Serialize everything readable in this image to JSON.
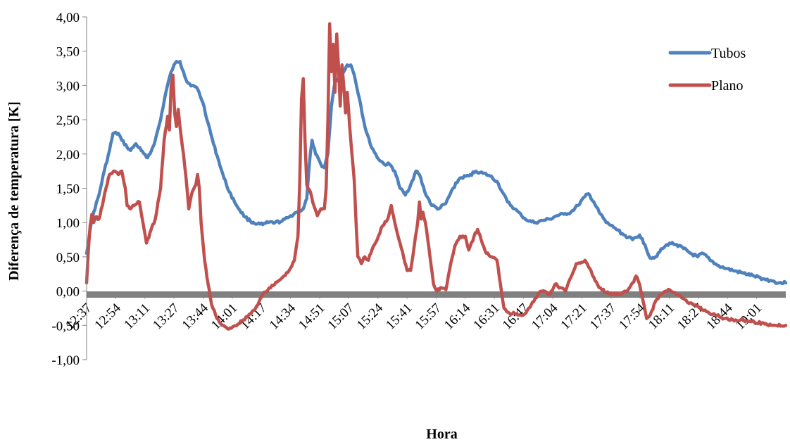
{
  "chart_data": {
    "type": "line",
    "title": "",
    "xlabel": "Hora",
    "ylabel": "Diferença de temperatura [K]",
    "ylim": [
      -1.0,
      4.0
    ],
    "ytick_labels": [
      "-1,00",
      "-0,50",
      "0,00",
      "0,50",
      "1,00",
      "1,50",
      "2,00",
      "2,50",
      "3,00",
      "3,50",
      "4,00"
    ],
    "xtick_labels": [
      "12:37",
      "12:54",
      "13:11",
      "13:27",
      "13:44",
      "14:01",
      "14:17",
      "14:34",
      "14:51",
      "15:07",
      "15:24",
      "15:41",
      "15:57",
      "16:14",
      "16:31",
      "16:47",
      "17:04",
      "17:21",
      "17:37",
      "17:54",
      "18:11",
      "18:27",
      "18:44",
      "19:01"
    ],
    "x_range": [
      "12:37",
      "19:14"
    ],
    "grid": false,
    "legend_position": "top-right",
    "reference_line": {
      "y": -0.05,
      "color": "#808080"
    },
    "series": [
      {
        "name": "Tubos",
        "color": "#4F81BD",
        "points": [
          [
            "12:37",
            0.55
          ],
          [
            "12:39",
            0.9
          ],
          [
            "12:41",
            1.15
          ],
          [
            "12:44",
            1.4
          ],
          [
            "12:47",
            1.75
          ],
          [
            "12:50",
            2.05
          ],
          [
            "12:52",
            2.3
          ],
          [
            "12:55",
            2.3
          ],
          [
            "12:57",
            2.2
          ],
          [
            "13:00",
            2.1
          ],
          [
            "13:02",
            2.05
          ],
          [
            "13:05",
            2.15
          ],
          [
            "13:08",
            2.05
          ],
          [
            "13:11",
            1.95
          ],
          [
            "13:13",
            2.0
          ],
          [
            "13:16",
            2.2
          ],
          [
            "13:19",
            2.5
          ],
          [
            "13:22",
            2.9
          ],
          [
            "13:25",
            3.2
          ],
          [
            "13:28",
            3.35
          ],
          [
            "13:30",
            3.35
          ],
          [
            "13:32",
            3.2
          ],
          [
            "13:34",
            3.05
          ],
          [
            "13:37",
            3.0
          ],
          [
            "13:40",
            2.95
          ],
          [
            "13:43",
            2.75
          ],
          [
            "13:46",
            2.45
          ],
          [
            "13:49",
            2.15
          ],
          [
            "13:52",
            1.9
          ],
          [
            "13:55",
            1.65
          ],
          [
            "13:58",
            1.45
          ],
          [
            "14:01",
            1.3
          ],
          [
            "14:04",
            1.18
          ],
          [
            "14:07",
            1.08
          ],
          [
            "14:10",
            1.02
          ],
          [
            "14:14",
            0.98
          ],
          [
            "14:17",
            0.97
          ],
          [
            "14:20",
            1.0
          ],
          [
            "14:24",
            1.0
          ],
          [
            "14:28",
            1.02
          ],
          [
            "14:32",
            1.08
          ],
          [
            "14:36",
            1.15
          ],
          [
            "14:40",
            1.2
          ],
          [
            "14:42",
            1.35
          ],
          [
            "14:44",
            2.0
          ],
          [
            "14:45",
            2.2
          ],
          [
            "14:47",
            2.0
          ],
          [
            "14:50",
            1.85
          ],
          [
            "14:52",
            1.8
          ],
          [
            "14:54",
            2.0
          ],
          [
            "14:56",
            2.7
          ],
          [
            "14:58",
            3.05
          ],
          [
            "15:00",
            3.1
          ],
          [
            "15:03",
            3.2
          ],
          [
            "15:05",
            3.3
          ],
          [
            "15:07",
            3.3
          ],
          [
            "15:09",
            3.15
          ],
          [
            "15:12",
            2.8
          ],
          [
            "15:15",
            2.4
          ],
          [
            "15:18",
            2.15
          ],
          [
            "15:22",
            1.95
          ],
          [
            "15:26",
            1.85
          ],
          [
            "15:29",
            1.85
          ],
          [
            "15:32",
            1.75
          ],
          [
            "15:35",
            1.5
          ],
          [
            "15:38",
            1.4
          ],
          [
            "15:41",
            1.55
          ],
          [
            "15:44",
            1.75
          ],
          [
            "15:46",
            1.7
          ],
          [
            "15:49",
            1.45
          ],
          [
            "15:53",
            1.25
          ],
          [
            "15:57",
            1.2
          ],
          [
            "16:01",
            1.28
          ],
          [
            "16:05",
            1.5
          ],
          [
            "16:09",
            1.65
          ],
          [
            "16:14",
            1.68
          ],
          [
            "16:18",
            1.75
          ],
          [
            "16:22",
            1.72
          ],
          [
            "16:26",
            1.68
          ],
          [
            "16:30",
            1.6
          ],
          [
            "16:33",
            1.45
          ],
          [
            "16:36",
            1.3
          ],
          [
            "16:40",
            1.2
          ],
          [
            "16:44",
            1.1
          ],
          [
            "16:48",
            1.02
          ],
          [
            "16:52",
            1.0
          ],
          [
            "16:56",
            1.03
          ],
          [
            "17:00",
            1.05
          ],
          [
            "17:04",
            1.1
          ],
          [
            "17:08",
            1.12
          ],
          [
            "17:12",
            1.15
          ],
          [
            "17:16",
            1.25
          ],
          [
            "17:20",
            1.38
          ],
          [
            "17:22",
            1.42
          ],
          [
            "17:25",
            1.3
          ],
          [
            "17:28",
            1.15
          ],
          [
            "17:32",
            1.0
          ],
          [
            "17:37",
            0.92
          ],
          [
            "17:42",
            0.82
          ],
          [
            "17:47",
            0.75
          ],
          [
            "17:51",
            0.82
          ],
          [
            "17:54",
            0.68
          ],
          [
            "17:57",
            0.48
          ],
          [
            "18:00",
            0.5
          ],
          [
            "18:04",
            0.62
          ],
          [
            "18:08",
            0.7
          ],
          [
            "18:12",
            0.68
          ],
          [
            "18:16",
            0.62
          ],
          [
            "18:20",
            0.55
          ],
          [
            "18:24",
            0.5
          ],
          [
            "18:27",
            0.55
          ],
          [
            "18:31",
            0.45
          ],
          [
            "18:35",
            0.38
          ],
          [
            "18:40",
            0.33
          ],
          [
            "18:44",
            0.3
          ],
          [
            "18:50",
            0.26
          ],
          [
            "18:56",
            0.22
          ],
          [
            "19:01",
            0.18
          ],
          [
            "19:06",
            0.15
          ],
          [
            "19:10",
            0.12
          ],
          [
            "19:14",
            0.12
          ]
        ]
      },
      {
        "name": "Plano",
        "color": "#C0504D",
        "points": [
          [
            "12:37",
            0.12
          ],
          [
            "12:38",
            0.6
          ],
          [
            "12:39",
            0.95
          ],
          [
            "12:40",
            1.12
          ],
          [
            "12:41",
            1.0
          ],
          [
            "12:42",
            1.08
          ],
          [
            "12:44",
            1.05
          ],
          [
            "12:46",
            1.25
          ],
          [
            "12:48",
            1.5
          ],
          [
            "12:50",
            1.7
          ],
          [
            "12:53",
            1.75
          ],
          [
            "12:55",
            1.7
          ],
          [
            "12:57",
            1.75
          ],
          [
            "12:59",
            1.5
          ],
          [
            "13:00",
            1.25
          ],
          [
            "13:02",
            1.2
          ],
          [
            "13:04",
            1.25
          ],
          [
            "13:07",
            1.3
          ],
          [
            "13:09",
            1.0
          ],
          [
            "13:11",
            0.7
          ],
          [
            "13:13",
            0.85
          ],
          [
            "13:16",
            1.05
          ],
          [
            "13:19",
            1.5
          ],
          [
            "13:21",
            2.2
          ],
          [
            "13:23",
            2.55
          ],
          [
            "13:24",
            2.35
          ],
          [
            "13:25",
            3.0
          ],
          [
            "13:26",
            3.15
          ],
          [
            "13:27",
            2.6
          ],
          [
            "13:28",
            2.4
          ],
          [
            "13:29",
            2.65
          ],
          [
            "13:30",
            2.4
          ],
          [
            "13:32",
            2.0
          ],
          [
            "13:34",
            1.5
          ],
          [
            "13:35",
            1.2
          ],
          [
            "13:37",
            1.45
          ],
          [
            "13:39",
            1.55
          ],
          [
            "13:40",
            1.7
          ],
          [
            "13:41",
            1.5
          ],
          [
            "13:42",
            1.0
          ],
          [
            "13:44",
            0.45
          ],
          [
            "13:46",
            0.1
          ],
          [
            "13:48",
            -0.2
          ],
          [
            "13:51",
            -0.4
          ],
          [
            "13:54",
            -0.5
          ],
          [
            "13:57",
            -0.55
          ],
          [
            "14:00",
            -0.52
          ],
          [
            "14:03",
            -0.48
          ],
          [
            "14:06",
            -0.42
          ],
          [
            "14:09",
            -0.35
          ],
          [
            "14:12",
            -0.28
          ],
          [
            "14:15",
            -0.15
          ],
          [
            "14:17",
            -0.05
          ],
          [
            "14:20",
            0.02
          ],
          [
            "14:23",
            0.08
          ],
          [
            "14:26",
            0.15
          ],
          [
            "14:29",
            0.22
          ],
          [
            "14:32",
            0.3
          ],
          [
            "14:35",
            0.45
          ],
          [
            "14:37",
            0.8
          ],
          [
            "14:38",
            1.6
          ],
          [
            "14:39",
            2.8
          ],
          [
            "14:40",
            3.1
          ],
          [
            "14:41",
            2.2
          ],
          [
            "14:42",
            1.55
          ],
          [
            "14:44",
            1.45
          ],
          [
            "14:46",
            1.25
          ],
          [
            "14:48",
            1.1
          ],
          [
            "14:50",
            1.2
          ],
          [
            "14:52",
            1.2
          ],
          [
            "14:53",
            1.5
          ],
          [
            "14:54",
            2.5
          ],
          [
            "14:55",
            3.9
          ],
          [
            "14:56",
            3.2
          ],
          [
            "14:57",
            3.6
          ],
          [
            "14:58",
            2.9
          ],
          [
            "14:59",
            3.75
          ],
          [
            "15:00",
            3.3
          ],
          [
            "15:01",
            2.7
          ],
          [
            "15:02",
            3.3
          ],
          [
            "15:03",
            3.0
          ],
          [
            "15:04",
            2.6
          ],
          [
            "15:05",
            2.9
          ],
          [
            "15:07",
            2.2
          ],
          [
            "15:09",
            1.6
          ],
          [
            "15:10",
            1.0
          ],
          [
            "15:11",
            0.5
          ],
          [
            "15:13",
            0.4
          ],
          [
            "15:15",
            0.5
          ],
          [
            "15:17",
            0.45
          ],
          [
            "15:19",
            0.6
          ],
          [
            "15:22",
            0.75
          ],
          [
            "15:25",
            0.95
          ],
          [
            "15:28",
            1.05
          ],
          [
            "15:30",
            1.25
          ],
          [
            "15:32",
            1.0
          ],
          [
            "15:35",
            0.7
          ],
          [
            "15:37",
            0.5
          ],
          [
            "15:39",
            0.3
          ],
          [
            "15:41",
            0.3
          ],
          [
            "15:43",
            0.65
          ],
          [
            "15:45",
            1.0
          ],
          [
            "15:46",
            1.3
          ],
          [
            "15:47",
            1.05
          ],
          [
            "15:48",
            1.15
          ],
          [
            "15:50",
            0.9
          ],
          [
            "15:52",
            0.5
          ],
          [
            "15:54",
            0.1
          ],
          [
            "15:56",
            0.0
          ],
          [
            "15:58",
            0.05
          ],
          [
            "16:01",
            0.02
          ],
          [
            "16:03",
            0.3
          ],
          [
            "16:06",
            0.65
          ],
          [
            "16:09",
            0.8
          ],
          [
            "16:12",
            0.8
          ],
          [
            "16:14",
            0.6
          ],
          [
            "16:17",
            0.8
          ],
          [
            "16:19",
            0.9
          ],
          [
            "16:21",
            0.75
          ],
          [
            "16:24",
            0.55
          ],
          [
            "16:27",
            0.5
          ],
          [
            "16:30",
            0.45
          ],
          [
            "16:32",
            0.1
          ],
          [
            "16:34",
            -0.25
          ],
          [
            "16:37",
            -0.32
          ],
          [
            "16:41",
            -0.33
          ],
          [
            "16:45",
            -0.35
          ],
          [
            "16:48",
            -0.25
          ],
          [
            "16:51",
            -0.15
          ],
          [
            "16:54",
            -0.02
          ],
          [
            "16:57",
            0.0
          ],
          [
            "17:00",
            -0.05
          ],
          [
            "17:03",
            0.1
          ],
          [
            "17:06",
            0.05
          ],
          [
            "17:09",
            0.0
          ],
          [
            "17:12",
            0.2
          ],
          [
            "17:15",
            0.4
          ],
          [
            "17:18",
            0.42
          ],
          [
            "17:20",
            0.45
          ],
          [
            "17:22",
            0.35
          ],
          [
            "17:25",
            0.2
          ],
          [
            "17:28",
            0.05
          ],
          [
            "17:32",
            -0.02
          ],
          [
            "17:36",
            -0.05
          ],
          [
            "17:40",
            -0.05
          ],
          [
            "17:44",
            0.0
          ],
          [
            "17:47",
            0.12
          ],
          [
            "17:49",
            0.22
          ],
          [
            "17:51",
            0.1
          ],
          [
            "17:53",
            -0.15
          ],
          [
            "17:55",
            -0.4
          ],
          [
            "17:57",
            -0.35
          ],
          [
            "18:00",
            -0.15
          ],
          [
            "18:03",
            -0.05
          ],
          [
            "18:06",
            0.0
          ],
          [
            "18:08",
            0.02
          ],
          [
            "18:11",
            -0.02
          ],
          [
            "18:15",
            -0.1
          ],
          [
            "18:19",
            -0.18
          ],
          [
            "18:24",
            -0.22
          ],
          [
            "18:29",
            -0.3
          ],
          [
            "18:34",
            -0.35
          ],
          [
            "18:39",
            -0.4
          ],
          [
            "18:44",
            -0.42
          ],
          [
            "18:50",
            -0.42
          ],
          [
            "18:56",
            -0.45
          ],
          [
            "19:02",
            -0.48
          ],
          [
            "19:08",
            -0.5
          ],
          [
            "19:14",
            -0.5
          ]
        ]
      }
    ]
  }
}
